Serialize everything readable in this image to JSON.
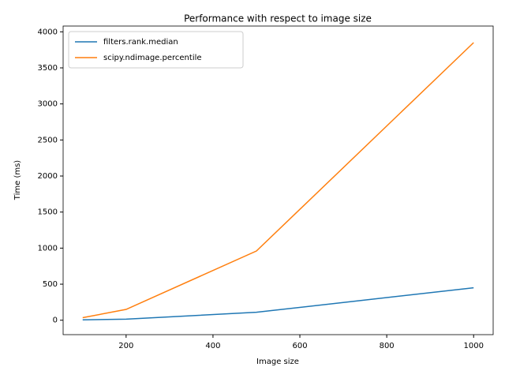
{
  "chart_data": {
    "type": "line",
    "title": "Performance with respect to image size",
    "x_label": "Image size",
    "y_label": "Time (ms)",
    "x": [
      100,
      200,
      500,
      1000
    ],
    "series": [
      {
        "name": "filters.rank.median",
        "color": "#1f77b4",
        "values": [
          5,
          15,
          110,
          450
        ]
      },
      {
        "name": "scipy.ndimage.percentile",
        "color": "#ff7f0e",
        "values": [
          35,
          150,
          960,
          3850
        ]
      }
    ],
    "xlim": [
      55,
      1045
    ],
    "ylim": [
      -200,
      4080
    ],
    "xticks": [
      200,
      400,
      600,
      800,
      1000
    ],
    "yticks": [
      0,
      500,
      1000,
      1500,
      2000,
      2500,
      3000,
      3500,
      4000
    ],
    "legend": "upper left"
  }
}
